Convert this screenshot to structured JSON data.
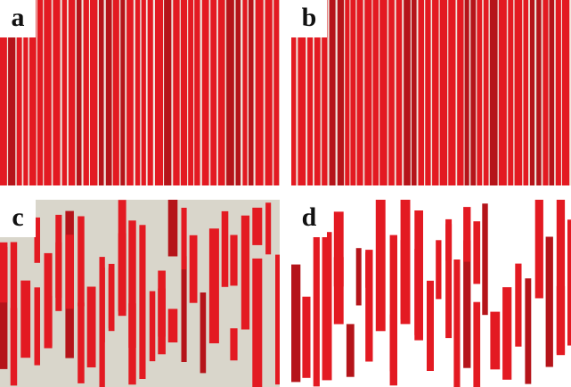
{
  "figure": {
    "panels": [
      {
        "id": "a",
        "label": "a",
        "fill_fraction": 1.0,
        "background": "#e8e4dc"
      },
      {
        "id": "b",
        "label": "b",
        "fill_fraction": 1.0,
        "background": "#e8e4dc"
      },
      {
        "id": "c",
        "label": "c",
        "fill_fraction": 0.55,
        "background": "#d9d6cb"
      },
      {
        "id": "d",
        "label": "d",
        "fill_fraction": 0.45,
        "background": "#ffffff"
      }
    ],
    "colors": {
      "stripe": "#e31a22",
      "stripe_shadow": "#b5141a",
      "gap_light": "#f2e8e0"
    }
  }
}
